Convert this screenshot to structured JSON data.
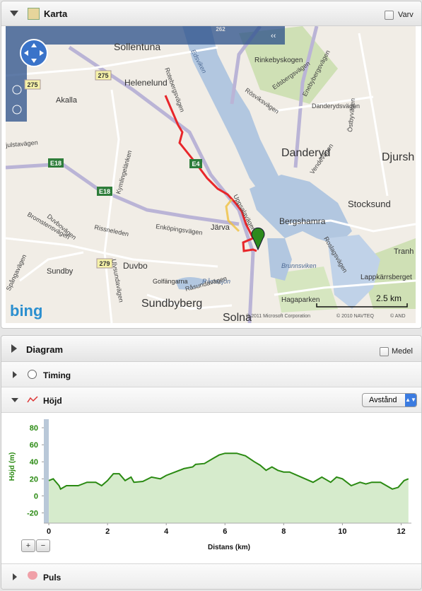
{
  "map_panel": {
    "title": "Karta",
    "checkbox": "Varv"
  },
  "map": {
    "places": [
      "Sollentuna",
      "Helenelund",
      "Akalla",
      "Rinkebyskogen",
      "Danderyd",
      "Djursh",
      "Stocksund",
      "Bergshamra",
      "Järva",
      "Duvbo",
      "Sundbyberg",
      "Solna",
      "Sundby",
      "Hagaparken",
      "Brunnsviken",
      "Lappkärrsberget",
      "Tranh",
      "Råstasjön",
      "Golfängarna",
      "Edsviken"
    ],
    "streets": [
      "Danderydsvägen",
      "Edsbergsvägen",
      "Enebybergsvägen",
      "Rösviksvägen",
      "Uppsalavägen",
      "Enköpingsvägen",
      "Rissneleden",
      "Kymlingelänken",
      "Bromstensvägen",
      "Duvbovägen",
      "Djulstavägen",
      "Råsundavägen",
      "Roslagsvägen",
      "Vendevägen",
      "Östbyvägen",
      "Spångavägen",
      "Ulvsundavägen",
      "Rotebergsvägen"
    ],
    "roads": [
      "E4",
      "E18",
      "E18",
      "275",
      "275",
      "279",
      "262"
    ],
    "scale": "2.5 km",
    "logo": "bing",
    "copyright": [
      "© 2011 Microsoft Corporation",
      "© 2010 NAVTEQ",
      "© AND"
    ]
  },
  "diagram_panel": {
    "title": "Diagram",
    "checkbox": "Medel",
    "rows": [
      "Timing",
      "Höjd",
      "Puls"
    ],
    "select": "Avstånd",
    "zoom": [
      "+",
      "−"
    ]
  },
  "chart_data": {
    "type": "area",
    "xlabel": "Distans (km)",
    "ylabel": "Höjd (m)",
    "color": "#2a8a12",
    "fill": "#d6ebcc",
    "x": [
      0,
      0.15,
      0.35,
      0.4,
      0.6,
      1.0,
      1.3,
      1.6,
      1.8,
      2.0,
      2.2,
      2.4,
      2.6,
      2.8,
      2.9,
      3.2,
      3.5,
      3.8,
      4.0,
      4.3,
      4.6,
      4.9,
      5.0,
      5.3,
      5.6,
      5.8,
      6.0,
      6.4,
      6.7,
      7.0,
      7.2,
      7.4,
      7.6,
      7.8,
      8.0,
      8.2,
      8.6,
      9.0,
      9.3,
      9.6,
      9.8,
      10.0,
      10.3,
      10.6,
      10.8,
      11.0,
      11.3,
      11.5,
      11.7,
      11.9,
      12.1,
      12.25
    ],
    "values": [
      18,
      20,
      12,
      8,
      12,
      12,
      16,
      16,
      12,
      18,
      26,
      26,
      18,
      22,
      16,
      17,
      22,
      20,
      24,
      28,
      32,
      34,
      37,
      38,
      44,
      48,
      50,
      50,
      47,
      40,
      36,
      30,
      34,
      30,
      28,
      28,
      22,
      16,
      22,
      16,
      22,
      20,
      12,
      16,
      14,
      16,
      16,
      12,
      8,
      10,
      18,
      20
    ],
    "xlim": [
      -0.17,
      12.35
    ],
    "ylim": [
      -32,
      90
    ],
    "xticks": [
      0,
      2,
      4,
      6,
      8,
      10,
      12
    ],
    "yticks": [
      80,
      60,
      40,
      20,
      0,
      -20
    ],
    "grid": false
  }
}
